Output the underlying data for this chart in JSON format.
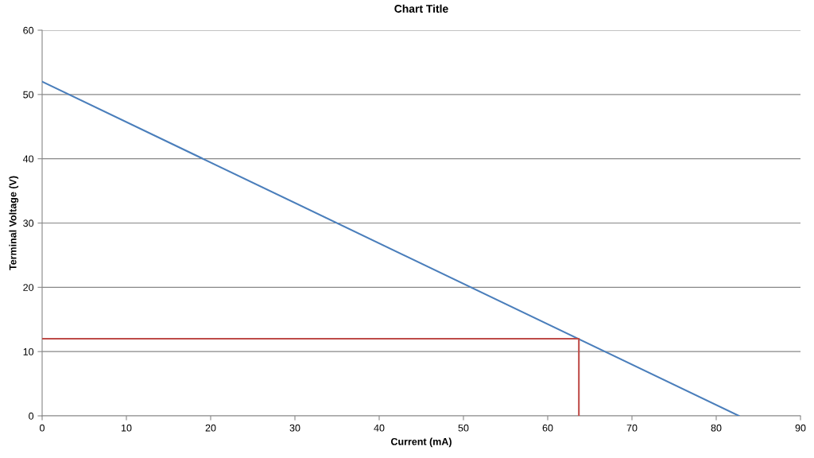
{
  "chart_data": {
    "type": "line",
    "title": "Chart Title",
    "xlabel": "Current (mA)",
    "ylabel": "Terminal Voltage (V)",
    "series": [
      {
        "color": "#4a7ebb",
        "x": [
          0,
          82.7
        ],
        "values": [
          52,
          0
        ]
      },
      {
        "color": "#be4b48",
        "x": [
          0,
          63.7,
          63.7
        ],
        "values": [
          12,
          12,
          0
        ]
      }
    ],
    "xlim": [
      0,
      90
    ],
    "xticks": [
      0,
      10,
      20,
      30,
      40,
      50,
      60,
      70,
      80,
      90
    ],
    "ylim": [
      0,
      60
    ],
    "yticks": [
      0,
      10,
      20,
      30,
      40,
      50,
      60
    ],
    "grid": "y",
    "marker": "none",
    "line_style": "solid"
  }
}
